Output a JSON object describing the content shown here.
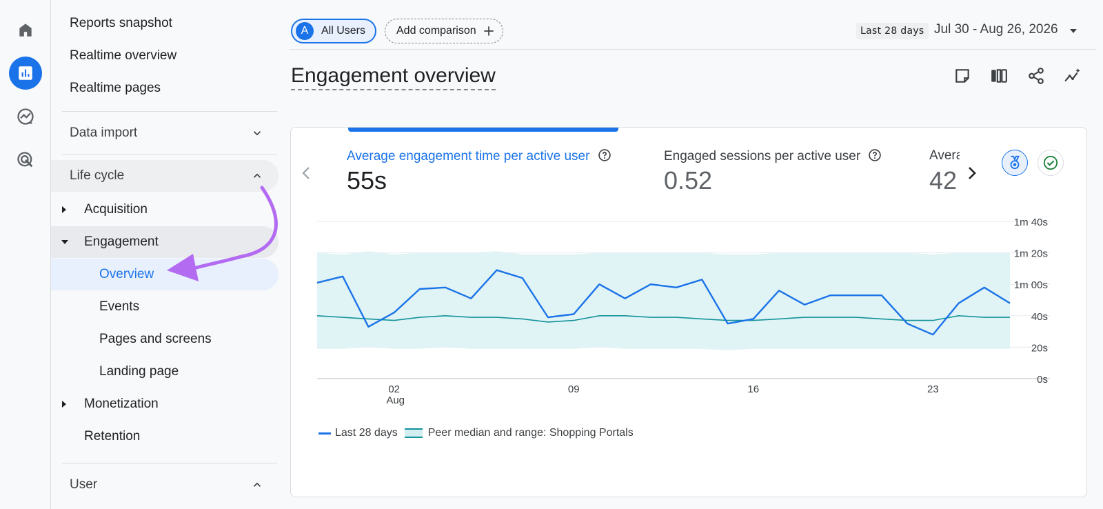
{
  "rail": {
    "items": [
      {
        "name": "home-icon"
      },
      {
        "name": "reports-icon",
        "active": true
      },
      {
        "name": "explore-icon"
      },
      {
        "name": "advertising-icon"
      }
    ]
  },
  "sidebar": {
    "top_items": [
      "Reports snapshot",
      "Realtime overview",
      "Realtime pages"
    ],
    "data_import": "Data import",
    "life_cycle": "Life cycle",
    "acquisition": "Acquisition",
    "engagement": "Engagement",
    "engagement_children": [
      "Overview",
      "Events",
      "Pages and screens",
      "Landing page"
    ],
    "monetization": "Monetization",
    "retention": "Retention",
    "user": "User"
  },
  "topbar": {
    "segment_initial": "A",
    "segment_label": "All Users",
    "compare_label": "Add comparison",
    "date_badge": "Last 28 days",
    "date_range": "Jul 30 - Aug 26, 2026"
  },
  "page": {
    "title": "Engagement overview",
    "tools": [
      "customize-report-icon",
      "compare-icon",
      "share-icon",
      "insights-icon"
    ]
  },
  "card": {
    "metrics": [
      {
        "label": "Average engagement time per active user",
        "value": "55s",
        "active": true
      },
      {
        "label": "Engaged sessions per active user",
        "value": "0.52"
      },
      {
        "label": "Avera",
        "value": "42"
      }
    ],
    "legend": {
      "series": "Last 28 days",
      "band": "Peer median and range: Shopping Portals"
    }
  },
  "colors": {
    "accent": "#1a73e8",
    "peer": "#12939a",
    "band": "#d3eef0",
    "arrow": "#b36bf2"
  },
  "chart_data": {
    "type": "line",
    "y_ticks": [
      "1m 40s",
      "1m 20s",
      "1m 00s",
      "40s",
      "20s",
      "0s"
    ],
    "ylim": [
      0,
      100
    ],
    "x_ticks": [
      {
        "day": 2,
        "label": "02",
        "sub": "Aug"
      },
      {
        "day": 9,
        "label": "09"
      },
      {
        "day": 16,
        "label": "16"
      },
      {
        "day": 23,
        "label": "23"
      }
    ],
    "x_start_day": -1,
    "x_end_day": 26,
    "series": [
      {
        "name": "Last 28 days",
        "type": "line",
        "values": [
          61,
          65,
          33,
          42,
          57,
          58,
          51,
          69,
          64,
          39,
          41,
          60,
          51,
          60,
          58,
          63,
          35,
          38,
          56,
          47,
          53,
          53,
          53,
          35,
          28,
          48,
          58,
          48
        ]
      },
      {
        "name": "Peer median and range: Shopping Portals",
        "type": "median",
        "values": [
          40,
          39,
          38,
          37,
          39,
          40,
          39,
          39,
          38,
          36,
          37,
          40,
          40,
          39,
          39,
          38,
          37,
          37,
          38,
          39,
          39,
          39,
          38,
          37,
          37,
          40,
          39,
          39
        ],
        "upper": [
          80,
          79,
          81,
          79,
          80,
          80,
          80,
          81,
          79,
          79,
          79,
          80,
          80,
          80,
          80,
          80,
          79,
          79,
          80,
          80,
          80,
          80,
          80,
          80,
          79,
          80,
          80,
          80
        ],
        "lower": [
          19,
          19,
          20,
          19,
          19,
          20,
          19,
          19,
          19,
          19,
          19,
          20,
          19,
          19,
          19,
          19,
          18,
          19,
          19,
          19,
          19,
          19,
          19,
          19,
          19,
          19,
          19,
          19
        ]
      }
    ]
  }
}
